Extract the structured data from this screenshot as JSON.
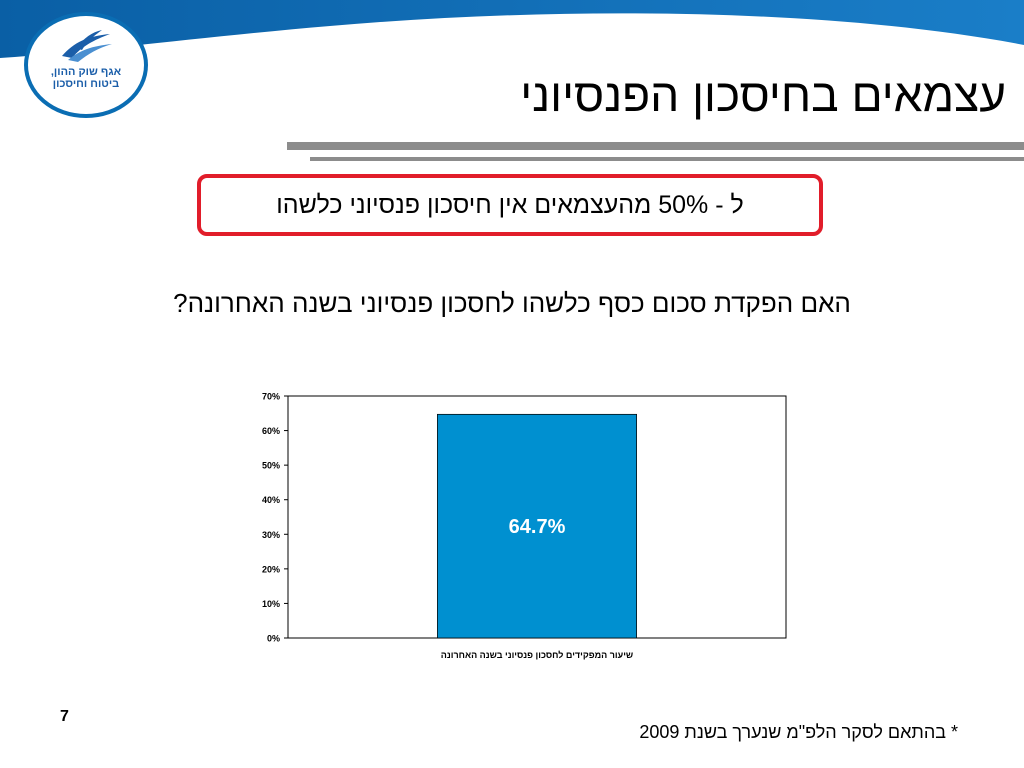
{
  "slide": {
    "title": "עצמאים בחיסכון הפנסיוני",
    "highlight_text": "ל - 50% מהעצמאים אין חיסכון פנסיוני כלשהו",
    "question": "האם הפקדת סכום כסף כלשהו לחסכון פנסיוני בשנה האחרונה?",
    "page_number": "7",
    "footnote": "* בהתאם לסקר הלפ\"מ שנערך בשנת 2009"
  },
  "logo": {
    "line1": "אגף שוק ההון,",
    "line2": "ביטוח וחיסכון"
  },
  "colors": {
    "banner": "#0a6db3",
    "bar": "#0090d0",
    "highlight_border": "#e11d2a",
    "rule": "#8c8c8c"
  },
  "chart_data": {
    "type": "bar",
    "categories": [
      "שיעור המפקידים לחסכון פנסיוני בשנה האחרונה"
    ],
    "values": [
      64.7
    ],
    "data_labels": [
      "64.7%"
    ],
    "xlabel": "",
    "ylabel": "",
    "ylim": [
      0,
      70
    ],
    "yticks": [
      "0%",
      "10%",
      "20%",
      "30%",
      "40%",
      "50%",
      "60%",
      "70%"
    ],
    "grid": false,
    "legend": "none"
  }
}
